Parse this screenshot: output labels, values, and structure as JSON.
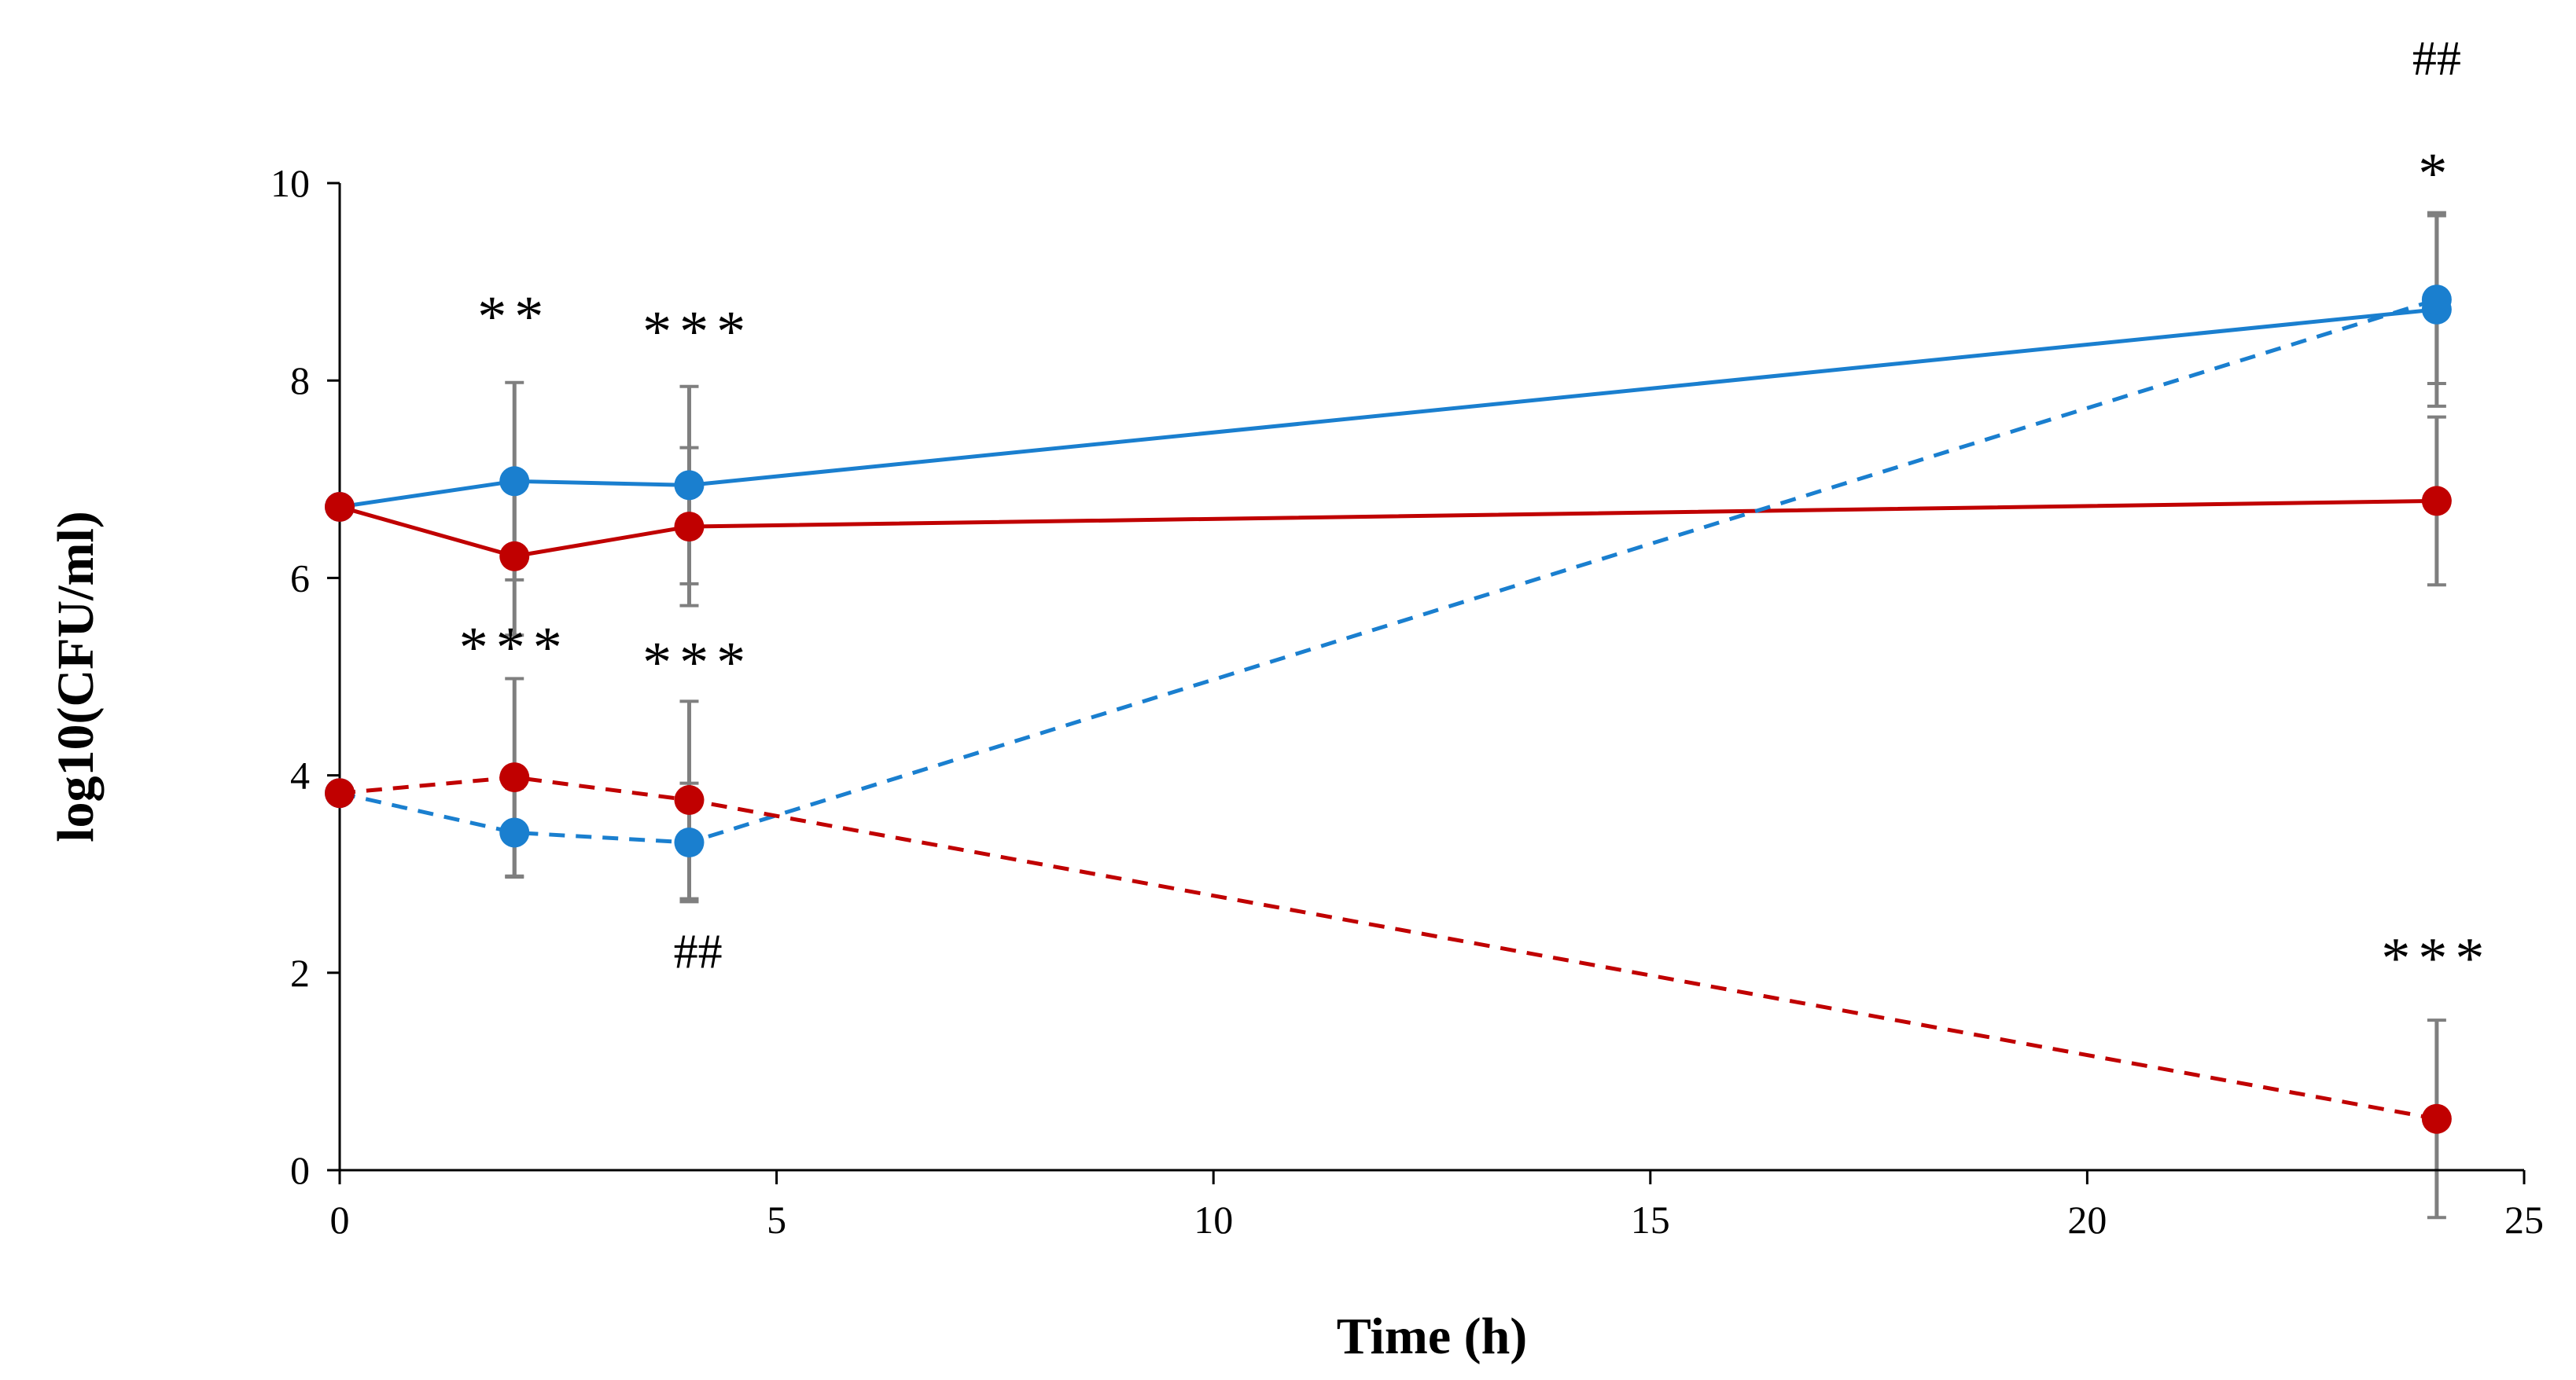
{
  "chart_data": {
    "type": "line",
    "title": "",
    "xlabel": "Time (h)",
    "ylabel": "log10(CFU/ml)",
    "xlim": [
      0,
      25
    ],
    "ylim": [
      0,
      10
    ],
    "xticks": [
      0,
      5,
      10,
      15,
      20,
      25
    ],
    "yticks": [
      0,
      2,
      4,
      6,
      8,
      10
    ],
    "grid": false,
    "legend": "none",
    "series": [
      {
        "name": "blue-solid",
        "color": "#1a7fcf",
        "dash": "solid",
        "x": [
          0,
          2,
          4,
          24
        ],
        "values": [
          6.72,
          6.98,
          6.94,
          8.72
        ],
        "error": [
          0,
          1.0,
          1.0,
          0.98
        ]
      },
      {
        "name": "red-solid",
        "color": "#c00000",
        "dash": "solid",
        "x": [
          0,
          2,
          4,
          24
        ],
        "values": [
          6.72,
          6.22,
          6.52,
          6.78
        ],
        "error": [
          0,
          0.8,
          0.8,
          0.85
        ]
      },
      {
        "name": "blue-dashed",
        "color": "#1a7fcf",
        "dash": "dashed",
        "x": [
          0,
          2,
          4,
          24
        ],
        "values": [
          3.82,
          3.42,
          3.32,
          8.82
        ],
        "error": [
          0,
          0.45,
          0.6,
          0.85
        ]
      },
      {
        "name": "red-dashed",
        "color": "#c00000",
        "dash": "dashed",
        "x": [
          0,
          2,
          4,
          24
        ],
        "values": [
          3.82,
          3.98,
          3.75,
          0.52
        ],
        "error": [
          0,
          1.0,
          1.0,
          1.0
        ]
      }
    ],
    "annotations": [
      {
        "text": "**",
        "x": 2,
        "y": 8.45,
        "kind": "stars"
      },
      {
        "text": "***",
        "x": 4.1,
        "y": 8.3,
        "kind": "stars"
      },
      {
        "text": "***",
        "x": 2,
        "y": 5.1,
        "kind": "stars"
      },
      {
        "text": "***",
        "x": 4.1,
        "y": 4.95,
        "kind": "stars"
      },
      {
        "text": "##",
        "x": 4.1,
        "y": 2.05,
        "kind": "hash"
      },
      {
        "text": "##",
        "x": 24,
        "y": 11.1,
        "kind": "hash"
      },
      {
        "text": "*",
        "x": 24,
        "y": 9.9,
        "kind": "stars"
      },
      {
        "text": "***",
        "x": 24,
        "y": 1.95,
        "kind": "stars"
      }
    ]
  }
}
